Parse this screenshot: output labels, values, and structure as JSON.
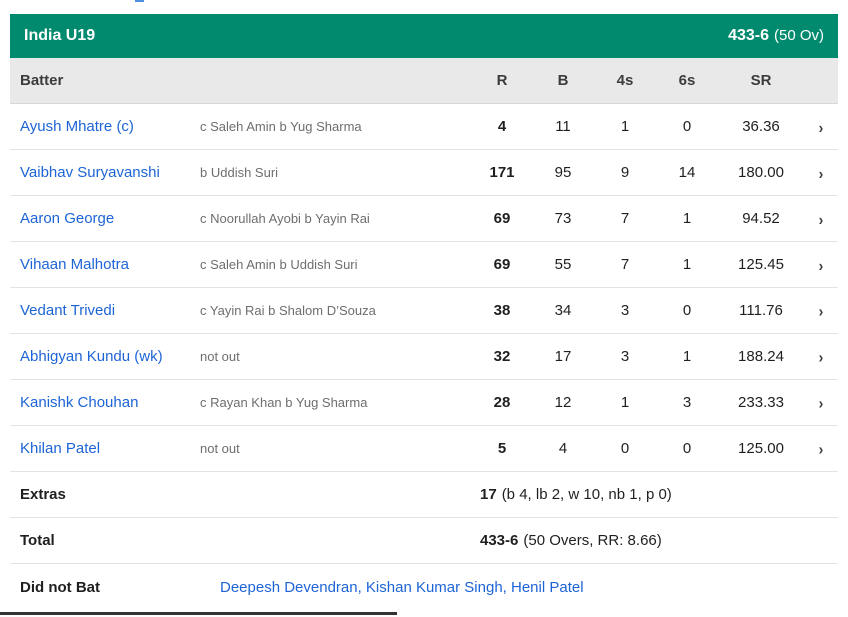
{
  "scorecard": {
    "team": {
      "name": "India U19",
      "score": "433-6",
      "overs": "(50 Ov)"
    },
    "columns": {
      "batter": "Batter",
      "runs": "R",
      "balls": "B",
      "fours": "4s",
      "sixes": "6s",
      "strike_rate": "SR"
    },
    "batters": [
      {
        "name": "Ayush Mhatre (c)",
        "dismissal": "c Saleh Amin b Yug Sharma",
        "runs": "4",
        "balls": "11",
        "fours": "1",
        "sixes": "0",
        "strike_rate": "36.36"
      },
      {
        "name": "Vaibhav Suryavanshi",
        "dismissal": "b Uddish Suri",
        "runs": "171",
        "balls": "95",
        "fours": "9",
        "sixes": "14",
        "strike_rate": "180.00"
      },
      {
        "name": "Aaron George",
        "dismissal": "c Noorullah Ayobi b Yayin Rai",
        "runs": "69",
        "balls": "73",
        "fours": "7",
        "sixes": "1",
        "strike_rate": "94.52"
      },
      {
        "name": "Vihaan Malhotra",
        "dismissal": "c Saleh Amin b Uddish Suri",
        "runs": "69",
        "balls": "55",
        "fours": "7",
        "sixes": "1",
        "strike_rate": "125.45"
      },
      {
        "name": "Vedant Trivedi",
        "dismissal": "c Yayin Rai b Shalom D’Souza",
        "runs": "38",
        "balls": "34",
        "fours": "3",
        "sixes": "0",
        "strike_rate": "111.76"
      },
      {
        "name": "Abhigyan Kundu (wk)",
        "dismissal": "not out",
        "runs": "32",
        "balls": "17",
        "fours": "3",
        "sixes": "1",
        "strike_rate": "188.24"
      },
      {
        "name": "Kanishk Chouhan",
        "dismissal": "c Rayan Khan b Yug Sharma",
        "runs": "28",
        "balls": "12",
        "fours": "1",
        "sixes": "3",
        "strike_rate": "233.33"
      },
      {
        "name": "Khilan Patel",
        "dismissal": "not out",
        "runs": "5",
        "balls": "4",
        "fours": "0",
        "sixes": "0",
        "strike_rate": "125.00"
      }
    ],
    "extras": {
      "label": "Extras",
      "value": "17",
      "detail": "(b 4, lb 2, w 10, nb 1, p 0)"
    },
    "total": {
      "label": "Total",
      "value": "433-6",
      "detail": "(50 Overs, RR: 8.66)"
    },
    "did_not_bat": {
      "label": "Did not Bat",
      "players": "Deepesh Devendran, Kishan Kumar Singh, Henil Patel"
    },
    "icons": {
      "chevron_right": "›"
    },
    "colors": {
      "team_bar_green": "#028a6e",
      "link_blue": "#1d64d6",
      "header_grey": "#e9e9e9",
      "dismissal_grey": "#6e6e6e"
    }
  }
}
